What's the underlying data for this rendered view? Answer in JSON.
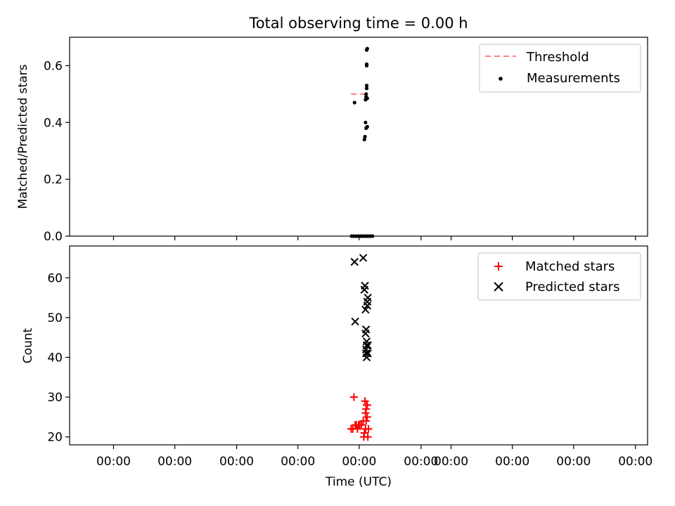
{
  "colors": {
    "threshold": "#ff7f7f",
    "measurements": "#000000",
    "matched": "#ff0000",
    "predicted": "#000000",
    "axes": "#000000",
    "background": "#ffffff"
  },
  "chart_data": [
    {
      "type": "scatter",
      "title": "Total observing time = 0.00 h",
      "xlabel": "",
      "ylabel": "Matched/Predicted stars",
      "xlim": [
        0,
        1
      ],
      "ylim": [
        0,
        0.7
      ],
      "yticks": [
        0.0,
        0.2,
        0.4,
        0.6
      ],
      "ytick_labels": [
        "0.0",
        "0.2",
        "0.4",
        "0.6"
      ],
      "grid": false,
      "legend": {
        "placement": "top-right",
        "entries": [
          "Threshold",
          "Measurements"
        ]
      },
      "threshold": {
        "name": "Threshold",
        "value": 0.5,
        "x": [
          0.487,
          0.516
        ],
        "style": "dashed"
      },
      "series": [
        {
          "name": "Measurements",
          "marker": "dot",
          "points": [
            [
              0.493,
              0.47
            ],
            [
              0.51,
              0.34
            ],
            [
              0.511,
              0.35
            ],
            [
              0.512,
              0.4
            ],
            [
              0.512,
              0.48
            ],
            [
              0.513,
              0.49
            ],
            [
              0.513,
              0.38
            ],
            [
              0.513,
              0.5
            ],
            [
              0.514,
              0.53
            ],
            [
              0.514,
              0.52
            ],
            [
              0.514,
              0.6
            ],
            [
              0.514,
              0.605
            ],
            [
              0.514,
              0.655
            ],
            [
              0.515,
              0.66
            ],
            [
              0.515,
              0.485
            ],
            [
              0.515,
              0.385
            ],
            [
              0.488,
              0.0
            ],
            [
              0.492,
              0.0
            ],
            [
              0.496,
              0.0
            ],
            [
              0.5,
              0.0
            ],
            [
              0.504,
              0.0
            ],
            [
              0.508,
              0.0
            ],
            [
              0.512,
              0.0
            ],
            [
              0.516,
              0.0
            ],
            [
              0.52,
              0.0
            ],
            [
              0.524,
              0.0
            ]
          ]
        }
      ]
    },
    {
      "type": "scatter",
      "title": "",
      "xlabel": "Time (UTC)",
      "ylabel": "Count",
      "xlim": [
        0,
        1
      ],
      "ylim": [
        18,
        68
      ],
      "yticks": [
        20,
        30,
        40,
        50,
        60
      ],
      "ytick_labels": [
        "20",
        "30",
        "40",
        "50",
        "60"
      ],
      "xticks": [
        0.076,
        0.182,
        0.289,
        0.395,
        0.501,
        0.608,
        0.66,
        0.766,
        0.872,
        0.979
      ],
      "xtick_labels": [
        "00:00",
        "00:00",
        "00:00",
        "00:00",
        "00:00",
        "00:00",
        "00:00",
        "00:00",
        "00:00",
        "00:00"
      ],
      "grid": false,
      "legend": {
        "placement": "top-right",
        "entries": [
          "Matched stars",
          "Predicted stars"
        ]
      },
      "series": [
        {
          "name": "Matched stars",
          "marker": "plus",
          "points": [
            [
              0.487,
              22
            ],
            [
              0.49,
              22
            ],
            [
              0.492,
              30
            ],
            [
              0.494,
              23
            ],
            [
              0.496,
              23
            ],
            [
              0.498,
              22
            ],
            [
              0.5,
              23
            ],
            [
              0.502,
              23
            ],
            [
              0.505,
              23
            ],
            [
              0.508,
              24
            ],
            [
              0.509,
              20
            ],
            [
              0.51,
              21
            ],
            [
              0.511,
              29
            ],
            [
              0.512,
              26
            ],
            [
              0.512,
              22
            ],
            [
              0.513,
              27
            ],
            [
              0.513,
              24
            ],
            [
              0.514,
              28
            ],
            [
              0.515,
              25
            ],
            [
              0.515,
              28
            ],
            [
              0.516,
              20
            ],
            [
              0.517,
              22
            ]
          ]
        },
        {
          "name": "Predicted stars",
          "marker": "x",
          "points": [
            [
              0.493,
              64
            ],
            [
              0.494,
              49
            ],
            [
              0.508,
              65
            ],
            [
              0.51,
              57
            ],
            [
              0.511,
              58
            ],
            [
              0.512,
              52
            ],
            [
              0.512,
              46
            ],
            [
              0.513,
              47
            ],
            [
              0.513,
              41
            ],
            [
              0.513,
              42
            ],
            [
              0.514,
              40
            ],
            [
              0.514,
              43
            ],
            [
              0.514,
              44
            ],
            [
              0.515,
              53
            ],
            [
              0.515,
              54
            ],
            [
              0.516,
              55
            ],
            [
              0.516,
              41
            ],
            [
              0.516,
              43
            ]
          ]
        }
      ]
    }
  ]
}
